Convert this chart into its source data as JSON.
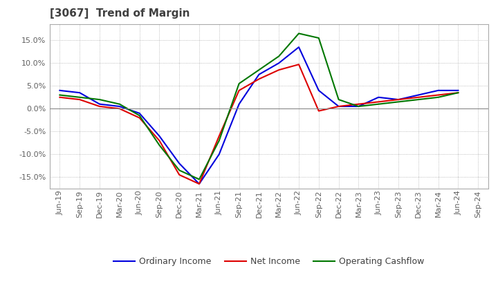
{
  "title": "[3067]  Trend of Margin",
  "title_color": "#404040",
  "background_color": "#ffffff",
  "grid_color": "#aaaaaa",
  "ylim": [
    -0.175,
    0.185
  ],
  "yticks": [
    -0.15,
    -0.1,
    -0.05,
    0.0,
    0.05,
    0.1,
    0.15
  ],
  "x_labels": [
    "Jun-19",
    "Sep-19",
    "Dec-19",
    "Mar-20",
    "Jun-20",
    "Sep-20",
    "Dec-20",
    "Mar-21",
    "Jun-21",
    "Sep-21",
    "Dec-21",
    "Mar-22",
    "Jun-22",
    "Sep-22",
    "Dec-22",
    "Mar-23",
    "Jun-23",
    "Sep-23",
    "Dec-23",
    "Mar-24",
    "Jun-24",
    "Sep-24"
  ],
  "ordinary_income": [
    0.04,
    0.035,
    0.01,
    0.005,
    -0.01,
    -0.06,
    -0.12,
    -0.165,
    -0.1,
    0.01,
    0.075,
    0.1,
    0.135,
    0.04,
    0.005,
    0.005,
    0.025,
    0.02,
    0.03,
    0.04,
    0.04,
    null
  ],
  "net_income": [
    0.025,
    0.02,
    0.005,
    0.0,
    -0.02,
    -0.07,
    -0.145,
    -0.165,
    -0.06,
    0.04,
    0.065,
    0.085,
    0.097,
    -0.005,
    0.005,
    0.01,
    0.015,
    0.02,
    0.025,
    0.03,
    0.035,
    null
  ],
  "operating_cashflow": [
    0.03,
    0.025,
    0.02,
    0.01,
    -0.015,
    -0.08,
    -0.135,
    -0.155,
    -0.07,
    0.055,
    0.085,
    0.115,
    0.165,
    0.155,
    0.02,
    0.005,
    0.01,
    0.015,
    0.02,
    0.025,
    0.035,
    null
  ],
  "line_colors": {
    "ordinary_income": "#0000dd",
    "net_income": "#dd0000",
    "operating_cashflow": "#007700"
  },
  "line_width": 1.5,
  "legend_labels": {
    "ordinary_income": "Ordinary Income",
    "net_income": "Net Income",
    "operating_cashflow": "Operating Cashflow"
  },
  "legend_color": "#404040",
  "tick_color": "#606060",
  "tick_fontsize": 8
}
